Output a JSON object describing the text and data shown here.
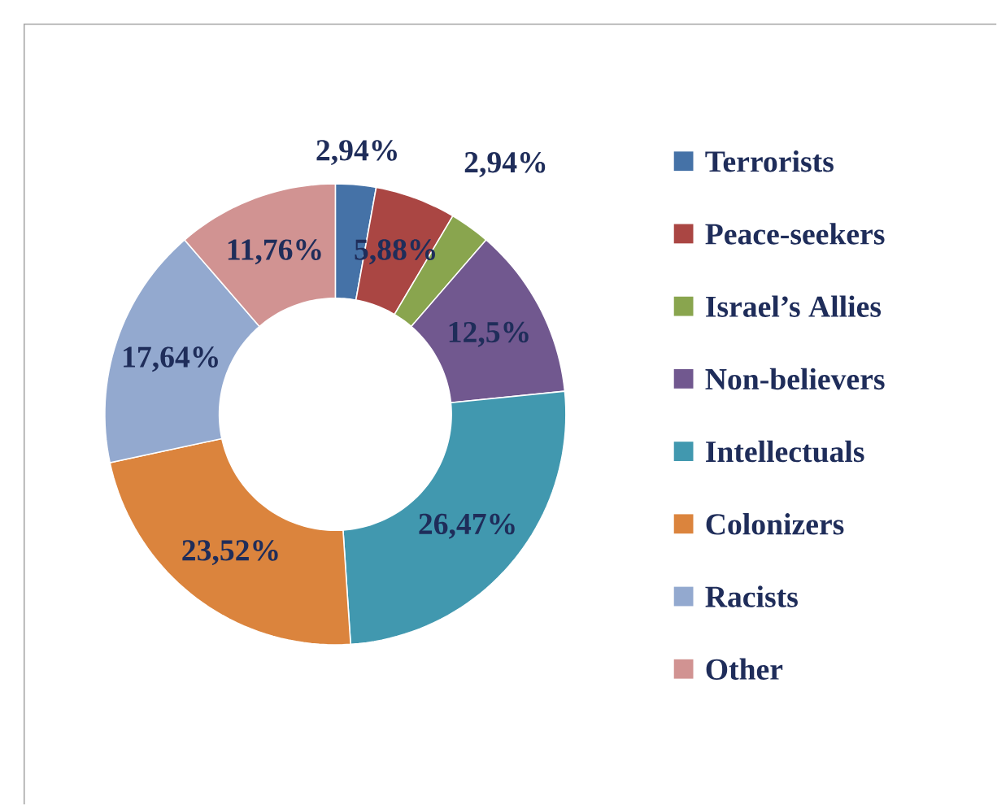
{
  "chart_data": {
    "type": "donut",
    "categories": [
      "Terrorists",
      "Peace-seekers",
      "Israel’s Allies",
      "Non-believers",
      "Intellectuals",
      "Colonizers",
      "Racists",
      "Other"
    ],
    "values": [
      2.94,
      5.88,
      2.94,
      12.5,
      26.47,
      23.52,
      17.64,
      11.76
    ],
    "value_labels": [
      "2,94%",
      "5,88%",
      "2,94%",
      "12,5%",
      "26,47%",
      "23,52%",
      "17,64%",
      "11,76%"
    ],
    "colors": [
      "#4572a7",
      "#aa4643",
      "#89a54e",
      "#71588f",
      "#4198af",
      "#db843d",
      "#93a9cf",
      "#d19392"
    ],
    "legend": "right"
  }
}
